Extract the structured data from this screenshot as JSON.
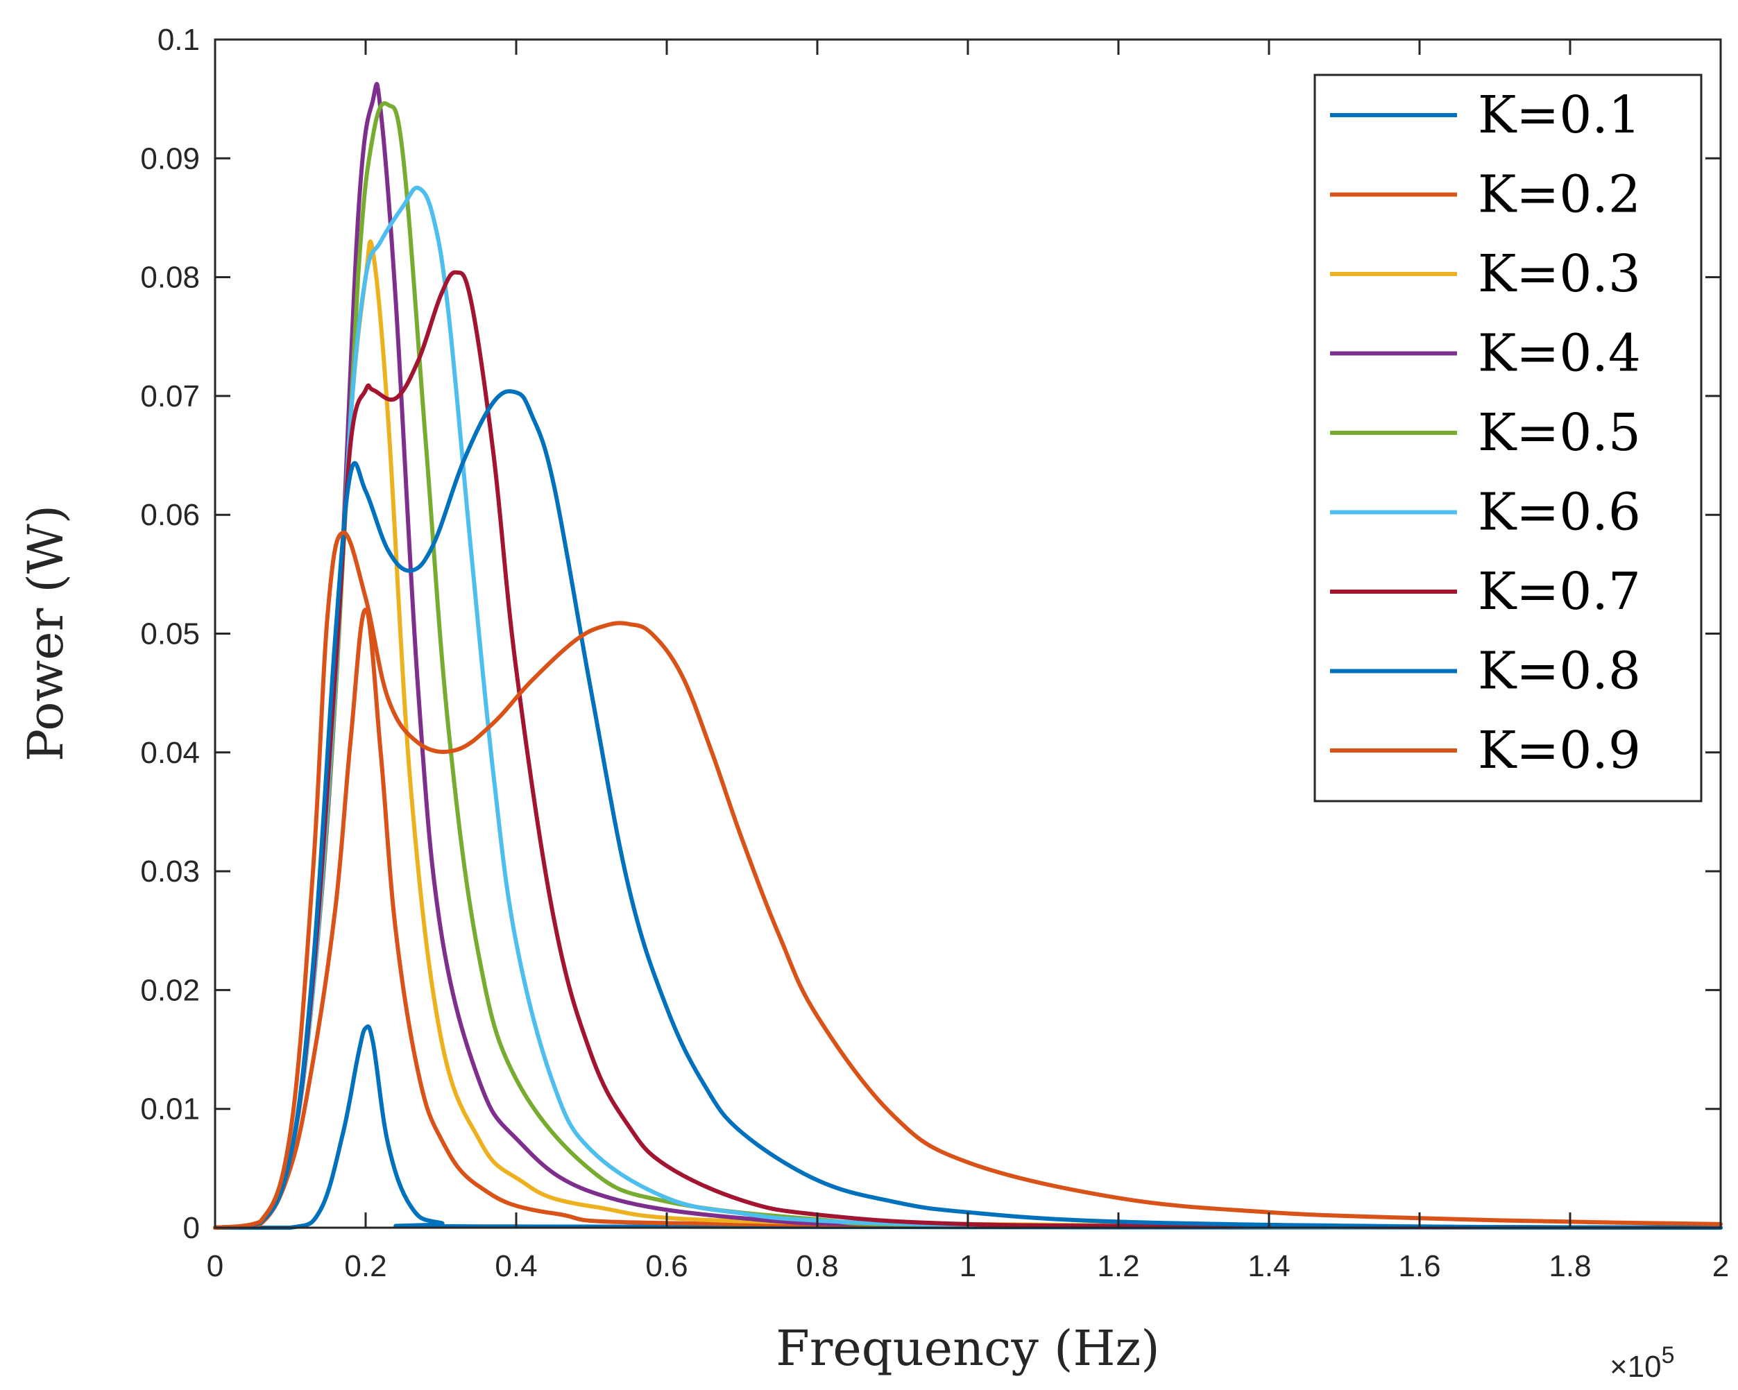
{
  "chart_data": {
    "type": "line",
    "xlabel": "Frequency (Hz)",
    "ylabel": "Power (W)",
    "x_exponent_label": "×10",
    "x_exponent_power": "5",
    "xlim": [
      0,
      2
    ],
    "ylim": [
      0,
      0.1
    ],
    "x_ticks": [
      "0",
      "0.2",
      "0.4",
      "0.6",
      "0.8",
      "1",
      "1.2",
      "1.4",
      "1.6",
      "1.8",
      "2"
    ],
    "y_ticks": [
      "0",
      "0.01",
      "0.02",
      "0.03",
      "0.04",
      "0.05",
      "0.06",
      "0.07",
      "0.08",
      "0.09",
      "0.1"
    ],
    "legend_position": "top-right",
    "series": [
      {
        "name": "K=0.1",
        "color": "#0072BD",
        "x": [
          0,
          0.1,
          0.14,
          0.17,
          0.19,
          0.2,
          0.21,
          0.23,
          0.26,
          0.3,
          0.4,
          2.0
        ],
        "y": [
          0,
          0.0,
          0.0015,
          0.008,
          0.0145,
          0.0168,
          0.0155,
          0.007,
          0.0018,
          0.0004,
          0.0001,
          0
        ]
      },
      {
        "name": "K=0.2",
        "color": "#D95319",
        "x": [
          0,
          0.06,
          0.1,
          0.13,
          0.16,
          0.18,
          0.2,
          0.22,
          0.24,
          0.27,
          0.3,
          0.35,
          0.45,
          0.7,
          2.0
        ],
        "y": [
          0,
          0.0003,
          0.005,
          0.014,
          0.027,
          0.041,
          0.052,
          0.04,
          0.025,
          0.013,
          0.0075,
          0.0035,
          0.0012,
          0.0003,
          0
        ]
      },
      {
        "name": "K=0.3",
        "color": "#EDB120",
        "x": [
          0,
          0.06,
          0.1,
          0.13,
          0.16,
          0.18,
          0.2,
          0.21,
          0.23,
          0.26,
          0.3,
          0.35,
          0.4,
          0.5,
          0.8,
          2.0
        ],
        "y": [
          0,
          0.0004,
          0.006,
          0.02,
          0.045,
          0.068,
          0.08,
          0.082,
          0.068,
          0.037,
          0.016,
          0.0075,
          0.0042,
          0.0018,
          0.0004,
          0
        ]
      },
      {
        "name": "K=0.4",
        "color": "#7E2F8E",
        "x": [
          0,
          0.06,
          0.1,
          0.13,
          0.16,
          0.19,
          0.21,
          0.22,
          0.24,
          0.27,
          0.3,
          0.35,
          0.4,
          0.5,
          0.7,
          1.0,
          2.0
        ],
        "y": [
          0,
          0.0004,
          0.006,
          0.02,
          0.045,
          0.085,
          0.095,
          0.094,
          0.078,
          0.045,
          0.025,
          0.0125,
          0.0075,
          0.003,
          0.0008,
          0.0002,
          0
        ]
      },
      {
        "name": "K=0.5",
        "color": "#77AC30",
        "x": [
          0,
          0.06,
          0.1,
          0.13,
          0.16,
          0.19,
          0.21,
          0.23,
          0.25,
          0.28,
          0.31,
          0.35,
          0.4,
          0.5,
          0.6,
          0.8,
          1.0,
          2.0
        ],
        "y": [
          0,
          0.0004,
          0.006,
          0.02,
          0.045,
          0.08,
          0.092,
          0.0945,
          0.09,
          0.066,
          0.042,
          0.023,
          0.0125,
          0.0048,
          0.0022,
          0.0007,
          0.0002,
          0
        ]
      },
      {
        "name": "K=0.6",
        "color": "#4DBEEE",
        "x": [
          0,
          0.06,
          0.1,
          0.13,
          0.16,
          0.18,
          0.2,
          0.22,
          0.25,
          0.27,
          0.29,
          0.31,
          0.34,
          0.37,
          0.4,
          0.45,
          0.5,
          0.6,
          0.7,
          0.8,
          1.0,
          1.4,
          2.0
        ],
        "y": [
          0,
          0.0004,
          0.006,
          0.02,
          0.046,
          0.068,
          0.08,
          0.083,
          0.086,
          0.0875,
          0.085,
          0.077,
          0.057,
          0.038,
          0.024,
          0.012,
          0.0065,
          0.0025,
          0.0012,
          0.0006,
          0.0002,
          5e-05,
          0
        ]
      },
      {
        "name": "K=0.7",
        "color": "#A2142F",
        "x": [
          0,
          0.06,
          0.1,
          0.13,
          0.16,
          0.18,
          0.2,
          0.21,
          0.24,
          0.27,
          0.3,
          0.32,
          0.34,
          0.37,
          0.4,
          0.45,
          0.5,
          0.55,
          0.6,
          0.7,
          0.8,
          1.0,
          1.4,
          2.0
        ],
        "y": [
          0,
          0.0004,
          0.006,
          0.021,
          0.047,
          0.066,
          0.0705,
          0.0705,
          0.0698,
          0.073,
          0.0785,
          0.0804,
          0.078,
          0.065,
          0.047,
          0.026,
          0.0145,
          0.0085,
          0.0052,
          0.0023,
          0.0011,
          0.0003,
          0.0001,
          0
        ]
      },
      {
        "name": "K=0.8",
        "color": "#0072BD",
        "x": [
          0,
          0.06,
          0.1,
          0.13,
          0.16,
          0.18,
          0.2,
          0.23,
          0.26,
          0.29,
          0.33,
          0.37,
          0.4,
          0.42,
          0.45,
          0.5,
          0.55,
          0.6,
          0.65,
          0.7,
          0.8,
          0.9,
          1.0,
          1.2,
          1.6,
          2.0
        ],
        "y": [
          0,
          0.0004,
          0.006,
          0.022,
          0.05,
          0.0635,
          0.062,
          0.057,
          0.0553,
          0.0575,
          0.0645,
          0.0695,
          0.0703,
          0.0685,
          0.0625,
          0.045,
          0.0285,
          0.0185,
          0.012,
          0.008,
          0.004,
          0.0022,
          0.0013,
          0.0005,
          0.0001,
          0
        ]
      },
      {
        "name": "K=0.9",
        "color": "#D95319",
        "x": [
          0,
          0.06,
          0.1,
          0.13,
          0.15,
          0.17,
          0.2,
          0.23,
          0.27,
          0.32,
          0.37,
          0.42,
          0.48,
          0.52,
          0.55,
          0.58,
          0.62,
          0.66,
          0.7,
          0.75,
          0.8,
          0.9,
          1.0,
          1.2,
          1.4,
          1.6,
          1.8,
          2.0
        ],
        "y": [
          0,
          0.0005,
          0.008,
          0.03,
          0.052,
          0.0585,
          0.053,
          0.0445,
          0.0408,
          0.0402,
          0.0425,
          0.046,
          0.0495,
          0.0507,
          0.0508,
          0.05,
          0.0465,
          0.04,
          0.0327,
          0.0245,
          0.0178,
          0.0095,
          0.0055,
          0.0025,
          0.0013,
          0.0008,
          0.0005,
          0.0003
        ]
      }
    ]
  }
}
